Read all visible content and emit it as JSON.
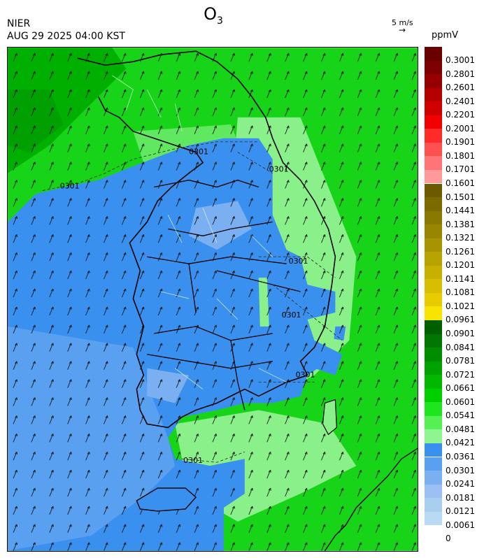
{
  "title_main": "O",
  "title_sub": "3",
  "org": "NIER",
  "timestamp": "AUG 29 2025 04:00 KST",
  "wind_scale_label": "5 m/s",
  "wind_scale_arrow": "→",
  "unit": "ppmV",
  "contour_label": "0301",
  "legend": {
    "labels": [
      "0.3001",
      "0.2801",
      "0.2601",
      "0.2401",
      "0.2201",
      "0.2001",
      "0.1901",
      "0.1801",
      "0.1701",
      "0.1601",
      "0.1501",
      "0.1441",
      "0.1381",
      "0.1321",
      "0.1261",
      "0.1201",
      "0.1141",
      "0.1081",
      "0.1021",
      "0.0961",
      "0.0901",
      "0.0841",
      "0.0781",
      "0.0721",
      "0.0661",
      "0.0601",
      "0.0541",
      "0.0481",
      "0.0421",
      "0.0361",
      "0.0301",
      "0.0241",
      "0.0181",
      "0.0121",
      "0.0061",
      "0"
    ],
    "colors": [
      "#6b0000",
      "#7e0000",
      "#960000",
      "#b40000",
      "#d00000",
      "#f00000",
      "#ff2a2a",
      "#ff5050",
      "#ff7575",
      "#ff9a9a",
      "#6b5a00",
      "#7a6a00",
      "#8a7800",
      "#998600",
      "#a89400",
      "#b8a200",
      "#c8b000",
      "#d8be00",
      "#e8cc00",
      "#f8e400",
      "#005f00",
      "#007500",
      "#008c00",
      "#00a200",
      "#00b800",
      "#00cf00",
      "#1ee61e",
      "#54f054",
      "#8ff58f",
      "#3a90ee",
      "#5aa0f0",
      "#7ab0f2",
      "#9ac0f4",
      "#a8cef0",
      "#b8daf2"
    ]
  }
}
